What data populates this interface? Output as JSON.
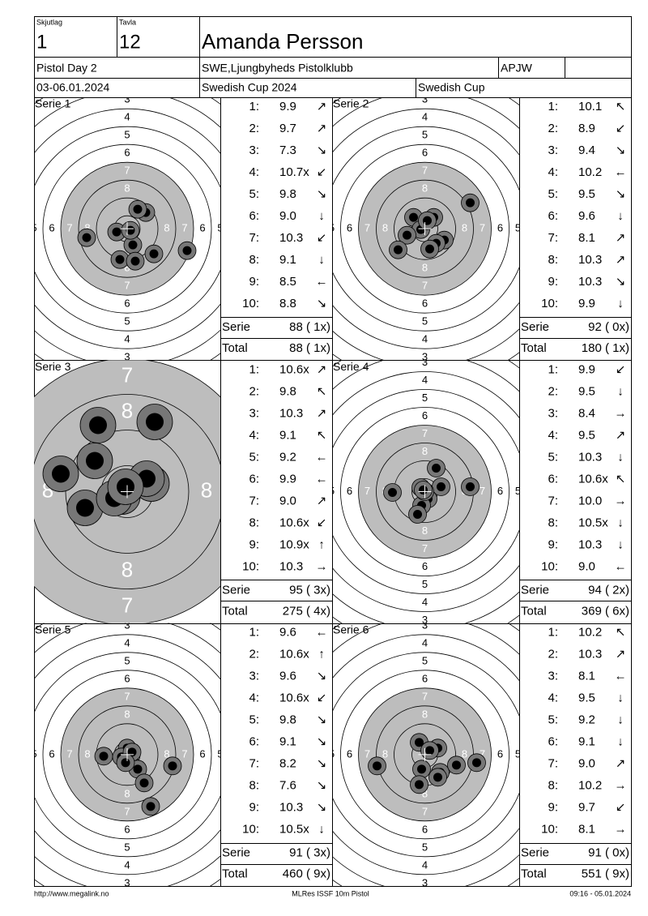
{
  "header": {
    "squad_label": "Skjutlag",
    "squad": "1",
    "lane_label": "Tavla",
    "lane": "12",
    "name": "Amanda Persson",
    "event": "Pistol Day 2",
    "club": "SWE,Ljungbyheds Pistolklubb",
    "class": "APJW",
    "date": "03-06.01.2024",
    "competition": "Swedish Cup 2024",
    "cup": "Swedish Cup"
  },
  "ring_labels": [
    "3",
    "4",
    "5",
    "6",
    "7",
    "8"
  ],
  "series": [
    {
      "title": "Serie 1",
      "shots": [
        [
          "1:",
          "9.9",
          "↗"
        ],
        [
          "2:",
          "9.7",
          "↗"
        ],
        [
          "3:",
          "7.3",
          "↘"
        ],
        [
          "4:",
          "10.7x",
          "↙"
        ],
        [
          "5:",
          "9.8",
          "↘"
        ],
        [
          "6:",
          "9.0",
          "↓"
        ],
        [
          "7:",
          "10.3",
          "↙"
        ],
        [
          "8:",
          "9.1",
          "↓"
        ],
        [
          "9:",
          "8.5",
          "←"
        ],
        [
          "10:",
          "8.8",
          "↘"
        ]
      ],
      "serie_label": "Serie",
      "serie": "88 ( 1x)",
      "total_label": "Total",
      "total": "88 ( 1x)"
    },
    {
      "title": "Serie 2",
      "shots": [
        [
          "1:",
          "10.1",
          "↖"
        ],
        [
          "2:",
          "8.9",
          "↙"
        ],
        [
          "3:",
          "9.4",
          "↘"
        ],
        [
          "4:",
          "10.2",
          "←"
        ],
        [
          "5:",
          "9.5",
          "↘"
        ],
        [
          "6:",
          "9.6",
          "↓"
        ],
        [
          "7:",
          "8.1",
          "↗"
        ],
        [
          "8:",
          "10.3",
          "↗"
        ],
        [
          "9:",
          "10.3",
          "↘"
        ],
        [
          "10:",
          "9.9",
          "↓"
        ]
      ],
      "serie_label": "Serie",
      "serie": "92 ( 0x)",
      "total_label": "Total",
      "total": "180 ( 1x)"
    },
    {
      "title": "Serie 3",
      "zoom": true,
      "shots": [
        [
          "1:",
          "10.6x",
          "↗"
        ],
        [
          "2:",
          "9.8",
          "↖"
        ],
        [
          "3:",
          "10.3",
          "↗"
        ],
        [
          "4:",
          "9.1",
          "↖"
        ],
        [
          "5:",
          "9.2",
          "←"
        ],
        [
          "6:",
          "9.9",
          "←"
        ],
        [
          "7:",
          "9.0",
          "↗"
        ],
        [
          "8:",
          "10.6x",
          "↙"
        ],
        [
          "9:",
          "10.9x",
          "↑"
        ],
        [
          "10:",
          "10.3",
          "→"
        ]
      ],
      "serie_label": "Serie",
      "serie": "95 ( 3x)",
      "total_label": "Total",
      "total": "275 ( 4x)"
    },
    {
      "title": "Serie 4",
      "shots": [
        [
          "1:",
          "9.9",
          "↙"
        ],
        [
          "2:",
          "9.5",
          "↓"
        ],
        [
          "3:",
          "8.4",
          "→"
        ],
        [
          "4:",
          "9.5",
          "↗"
        ],
        [
          "5:",
          "10.3",
          "↓"
        ],
        [
          "6:",
          "10.6x",
          "↖"
        ],
        [
          "7:",
          "10.0",
          "→"
        ],
        [
          "8:",
          "10.5x",
          "↓"
        ],
        [
          "9:",
          "10.3",
          "↓"
        ],
        [
          "10:",
          "9.0",
          "←"
        ]
      ],
      "serie_label": "Serie",
      "serie": "94 ( 2x)",
      "total_label": "Total",
      "total": "369 ( 6x)"
    },
    {
      "title": "Serie 5",
      "shots": [
        [
          "1:",
          "9.6",
          "←"
        ],
        [
          "2:",
          "10.6x",
          "↑"
        ],
        [
          "3:",
          "9.6",
          "↘"
        ],
        [
          "4:",
          "10.6x",
          "↙"
        ],
        [
          "5:",
          "9.8",
          "↘"
        ],
        [
          "6:",
          "9.1",
          "↘"
        ],
        [
          "7:",
          "8.2",
          "↘"
        ],
        [
          "8:",
          "7.6",
          "↘"
        ],
        [
          "9:",
          "10.3",
          "↘"
        ],
        [
          "10:",
          "10.5x",
          "↓"
        ]
      ],
      "serie_label": "Serie",
      "serie": "91 ( 3x)",
      "total_label": "Total",
      "total": "460 ( 9x)"
    },
    {
      "title": "Serie 6",
      "shots": [
        [
          "1:",
          "10.2",
          "↖"
        ],
        [
          "2:",
          "10.3",
          "↗"
        ],
        [
          "3:",
          "8.1",
          "←"
        ],
        [
          "4:",
          "9.5",
          "↓"
        ],
        [
          "5:",
          "9.2",
          "↓"
        ],
        [
          "6:",
          "9.1",
          "↓"
        ],
        [
          "7:",
          "9.0",
          "↗"
        ],
        [
          "8:",
          "10.2",
          "→"
        ],
        [
          "9:",
          "9.7",
          "↙"
        ],
        [
          "10:",
          "8.1",
          "→"
        ]
      ],
      "serie_label": "Serie",
      "serie": "91 ( 0x)",
      "total_label": "Total",
      "total": "551 ( 9x)"
    }
  ],
  "footer": {
    "url": "http://www.megalink.no",
    "program": "MLRes ISSF 10m Pistol",
    "timestamp": "09:16 - 05.01.2024"
  }
}
